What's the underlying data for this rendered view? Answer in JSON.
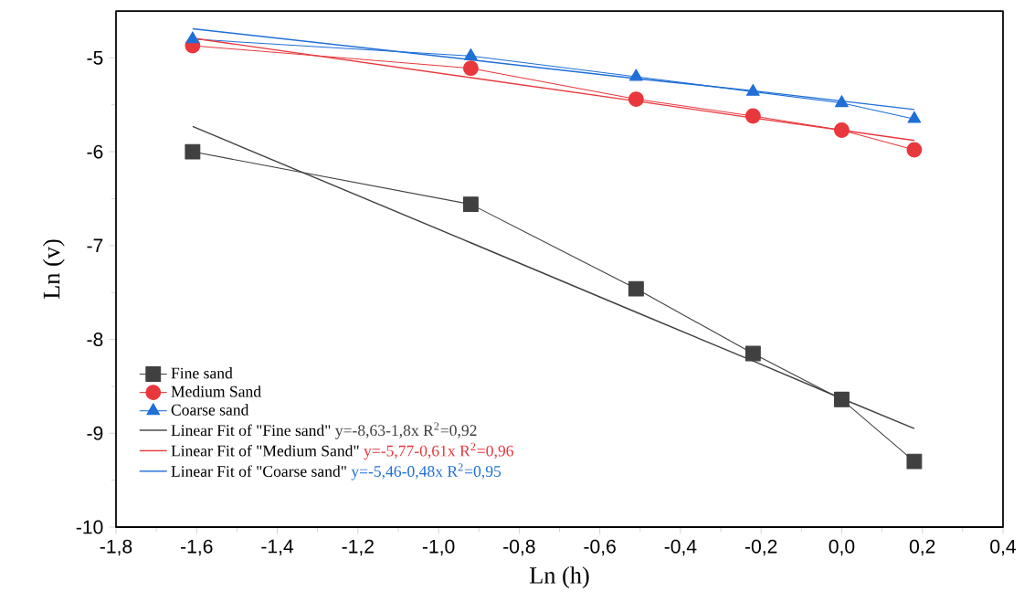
{
  "chart_data": {
    "type": "line",
    "xlabel": "Ln (h)",
    "ylabel": "Ln (v)",
    "x": [
      -1.61,
      -0.92,
      -0.51,
      -0.22,
      0,
      0.18
    ],
    "series": [
      {
        "name": "Fine sand",
        "color": "#404040",
        "marker": "square",
        "values": [
          -6.0,
          -6.56,
          -7.46,
          -8.15,
          -8.64,
          -9.3
        ]
      },
      {
        "name": "Medium Sand",
        "color": "#e8383d",
        "marker": "circle",
        "values": [
          -4.87,
          -5.11,
          -5.44,
          -5.62,
          -5.77,
          -5.98
        ]
      },
      {
        "name": "Coarse sand",
        "color": "#1f6fd6",
        "marker": "triangle",
        "values": [
          -4.8,
          -4.98,
          -5.2,
          -5.36,
          -5.48,
          -5.65
        ]
      },
      {
        "name": "Linear Fit of  \"Fine sand\"",
        "color": "#404040",
        "marker": "none",
        "values": [
          -5.73,
          -6.97,
          -7.71,
          -8.23,
          -8.63,
          -8.95
        ]
      },
      {
        "name": "Linear Fit of  \"Medium Sand\"",
        "color": "#e8383d",
        "marker": "none",
        "values": [
          -4.79,
          -5.21,
          -5.46,
          -5.64,
          -5.77,
          -5.88
        ]
      },
      {
        "name": "Linear Fit of \"Coarse sand\"",
        "color": "#1f6fd6",
        "marker": "none",
        "values": [
          -4.69,
          -5.02,
          -5.22,
          -5.35,
          -5.46,
          -5.55
        ]
      }
    ],
    "annotations": [
      "y=-8,63-1,8x    R$^{2}$=0,92",
      "y=-5,77-0,61x  R$^{2}$=0,96",
      "y=-5,46-0,48x R$^{2}$=0,95"
    ],
    "xlim": [
      -1.8,
      0.4
    ],
    "xticks": [
      {
        "value": -1.8,
        "label": "-1,8"
      },
      {
        "value": -1.6,
        "label": "-1,6"
      },
      {
        "value": -1.4,
        "label": "-1,4"
      },
      {
        "value": -1.2,
        "label": "-1,2"
      },
      {
        "value": -1.0,
        "label": "-1,0"
      },
      {
        "value": -0.8,
        "label": "-0,8"
      },
      {
        "value": -0.6,
        "label": "-0,6"
      },
      {
        "value": -0.4,
        "label": "-0,4"
      },
      {
        "value": -0.2,
        "label": "-0,2"
      },
      {
        "value": 0.0,
        "label": "0,0"
      },
      {
        "value": 0.2,
        "label": "0,2"
      },
      {
        "value": 0.4,
        "label": "0,4"
      }
    ],
    "ylim": [
      -10,
      -4.5
    ],
    "yticks": [
      -10,
      -9,
      -8,
      -7,
      -6,
      -5
    ],
    "legend": "bottom left",
    "grid": false,
    "line_style": "solid"
  }
}
